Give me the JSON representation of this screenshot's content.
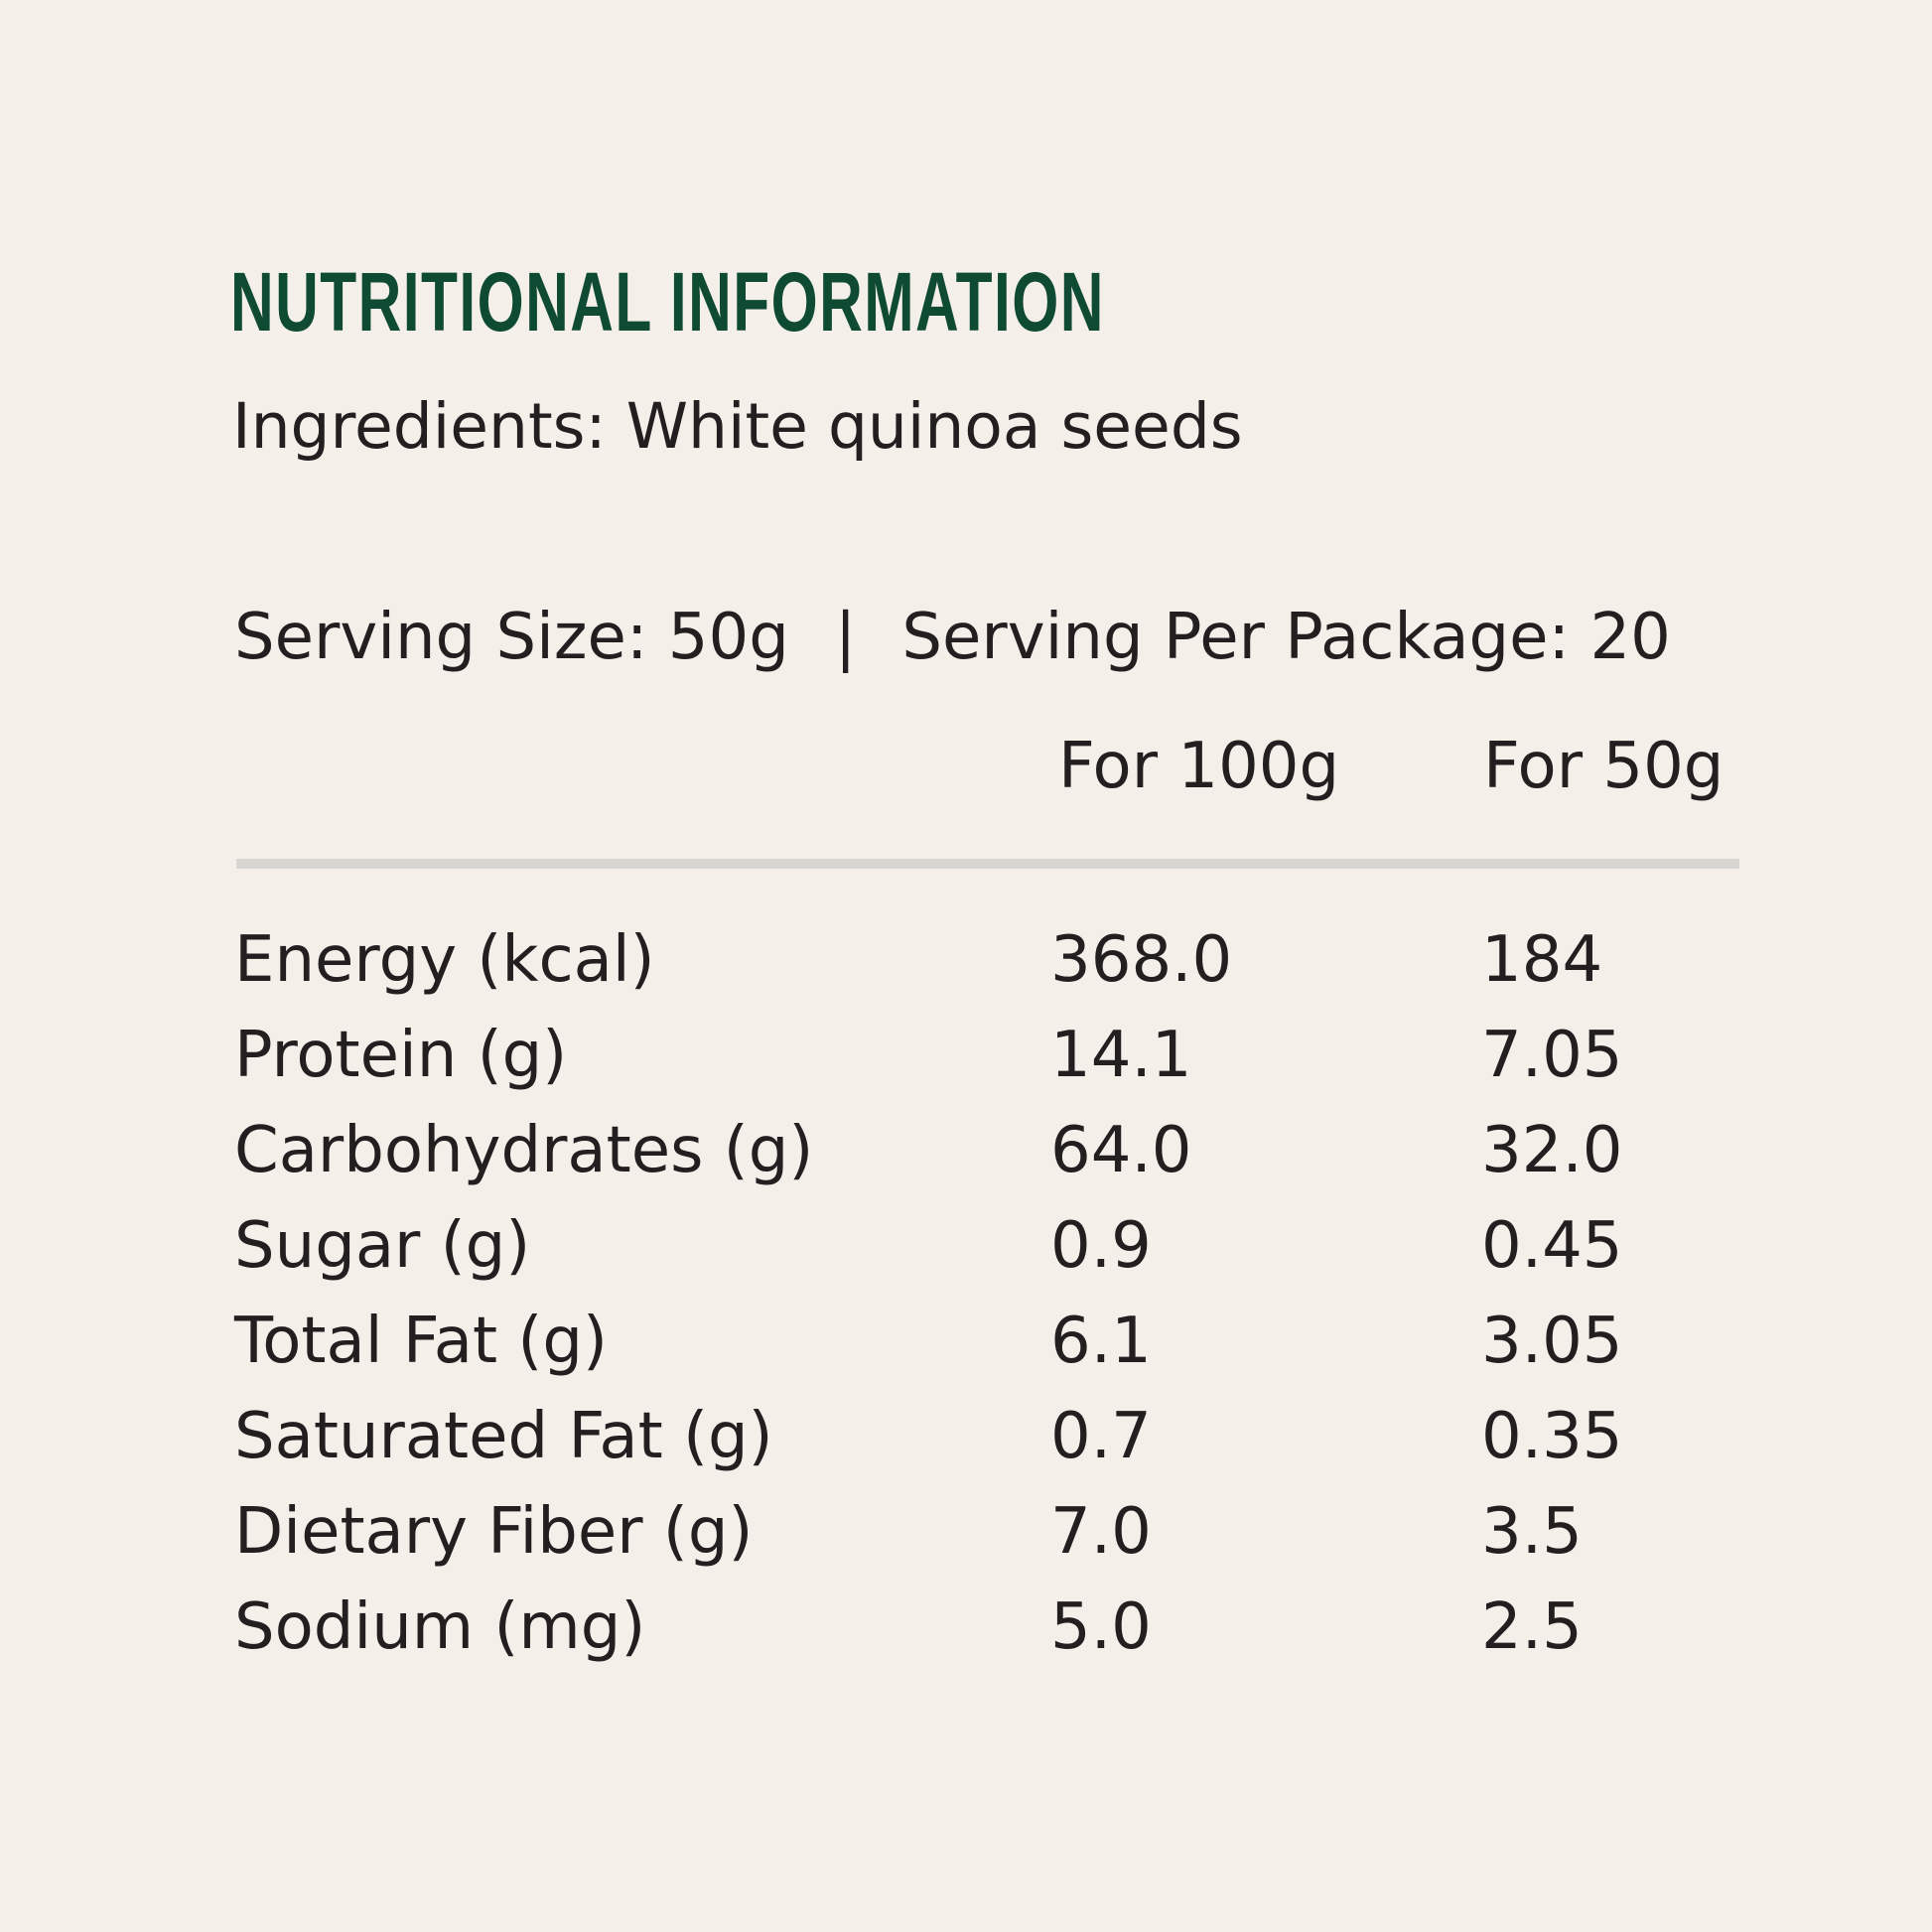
{
  "title": "NUTRITIONAL INFORMATION",
  "ingredients": "Ingredients: White quinoa seeds",
  "serving": {
    "size": "Serving Size: 50g",
    "separator": "|",
    "per_package": "Serving Per Package: 20"
  },
  "columns": {
    "per100": "For 100g",
    "per50": "For 50g"
  },
  "rows": [
    {
      "label": "Energy (kcal)",
      "per100": "368.0",
      "per50": "184"
    },
    {
      "label": "Protein (g)",
      "per100": "14.1",
      "per50": "7.05"
    },
    {
      "label": "Carbohydrates (g)",
      "per100": "64.0",
      "per50": "32.0"
    },
    {
      "label": "Sugar (g)",
      "per100": "0.9",
      "per50": "0.45"
    },
    {
      "label": "Total Fat (g)",
      "per100": "6.1",
      "per50": "3.05"
    },
    {
      "label": "Saturated Fat (g)",
      "per100": "0.7",
      "per50": "0.35"
    },
    {
      "label": "Dietary Fiber (g)",
      "per100": "7.0",
      "per50": "3.5"
    },
    {
      "label": "Sodium (mg)",
      "per100": "5.0",
      "per50": "2.5"
    }
  ],
  "colors": {
    "background": "#f4efe9",
    "title": "#0f4a32",
    "text": "#231f20",
    "rule": "#d7d6d3"
  }
}
